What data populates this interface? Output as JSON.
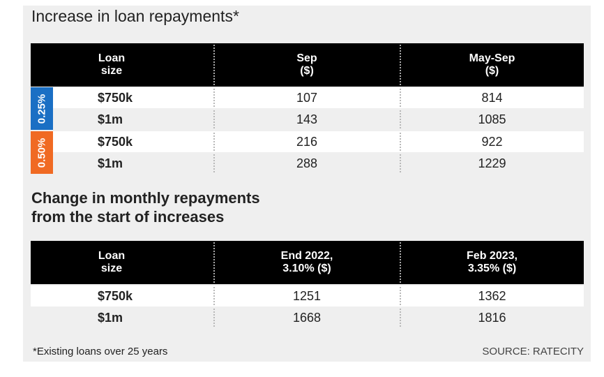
{
  "colors": {
    "rate_025": "#1a6fc4",
    "rate_050": "#f06a23",
    "header_bg": "#000000"
  },
  "table1": {
    "title": "Increase in loan repayments*",
    "headers": [
      "Loan\nsize",
      "Sep\n($)",
      "May-Sep\n($)"
    ],
    "groups": [
      {
        "rate": "0.25%",
        "rows": [
          {
            "loan": "$750k",
            "sep": "107",
            "may_sep": "814"
          },
          {
            "loan": "$1m",
            "sep": "143",
            "may_sep": "1085"
          }
        ]
      },
      {
        "rate": "0.50%",
        "rows": [
          {
            "loan": "$750k",
            "sep": "216",
            "may_sep": "922"
          },
          {
            "loan": "$1m",
            "sep": "288",
            "may_sep": "1229"
          }
        ]
      }
    ]
  },
  "table2": {
    "title": "Change in monthly repayments\nfrom the start of increases",
    "headers": [
      "Loan\nsize",
      "End 2022,\n3.10% ($)",
      "Feb 2023,\n3.35% ($)"
    ],
    "rows": [
      {
        "loan": "$750k",
        "end2022": "1251",
        "feb2023": "1362"
      },
      {
        "loan": "$1m",
        "end2022": "1668",
        "feb2023": "1816"
      }
    ]
  },
  "footnote": "*Existing loans over 25 years",
  "source": "SOURCE: RATECITY"
}
